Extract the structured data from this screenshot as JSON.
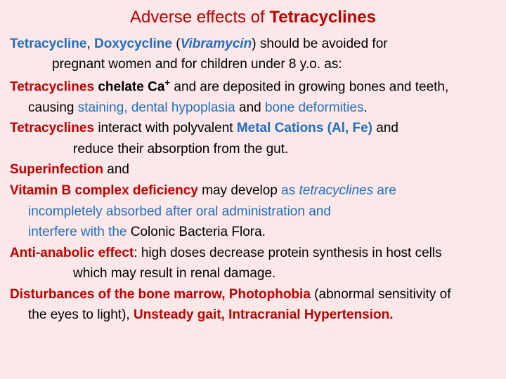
{
  "title": {
    "prefix": "Adverse effects of ",
    "main": "Tetracyclines"
  },
  "l1a": "Tetracycline",
  "l1b": ", ",
  "l1c": "Doxycycline",
  "l1d": " (",
  "l1e": "Vibramycin",
  "l1f": ") ",
  "l1g": "should be avoided for",
  "l2": "pregnant women and for children under 8 y.o. as:",
  "l3a": "Tetracyclines",
  "l3b": " chelate Ca",
  "l3sup": "+",
  "l3c": " and are deposited in growing bones and teeth,",
  "l4a": "causing ",
  "l4b": "staining, dental hypoplasia ",
  "l4c": "and ",
  "l4d": "bone deformities",
  "l4e": ".",
  "l5a": "Tetracyclines ",
  "l5b": "interact with polyvalent ",
  "l5c": "Metal Cations (Al, Fe) ",
  "l5d": "and",
  "l6": "reduce their absorption from the gut.",
  "l7a": "Superinfection ",
  "l7b": "and",
  "l8a": "Vitamin B complex deficiency ",
  "l8b": "may develop ",
  "l8c": "as ",
  "l8d": "tetracyclines ",
  "l8e": "are",
  "l9": "incompletely absorbed after oral administration and",
  "l10a": "interfere with the ",
  "l10b": "Colonic Bacteria Flora.",
  "l11a": "Anti-anabolic effect",
  "l11b": ": high doses decrease protein synthesis in host cells",
  "l12": "which may result in renal damage.",
  "l13a": "Disturbances of the bone marrow, Photophobia ",
  "l13b": "(abnormal sensitivity of",
  "l14a": "the eyes to light), ",
  "l14b": "Unsteady gait, Intracranial Hypertension.",
  "colors": {
    "background": "#fce8e8",
    "text": "#000000",
    "red": "#c00000",
    "blue": "#1f6fbf"
  },
  "fontsize": {
    "title": 24,
    "body": 19
  }
}
